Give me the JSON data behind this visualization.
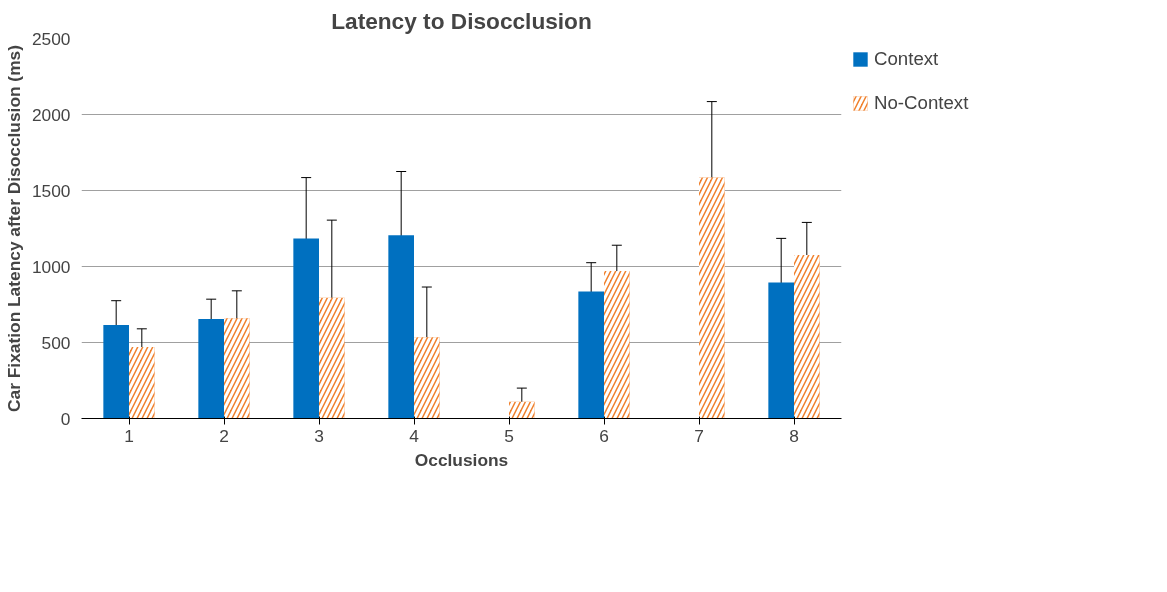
{
  "chart_data": {
    "type": "bar",
    "title": "Latency to Disocclusion",
    "xlabel": "Occlusions",
    "ylabel": "Car Fixation Latency after Disocclusion (ms)",
    "categories": [
      "1",
      "2",
      "3",
      "4",
      "5",
      "6",
      "7",
      "8"
    ],
    "series": [
      {
        "name": "Context",
        "color": "#0070c0",
        "values": [
          615,
          655,
          1185,
          1205,
          null,
          835,
          null,
          895
        ],
        "errors": [
          160,
          130,
          400,
          420,
          null,
          190,
          null,
          290
        ]
      },
      {
        "name": "No-Context",
        "color": "#f07f2a",
        "values": [
          470,
          660,
          795,
          535,
          110,
          970,
          1585,
          1075
        ],
        "errors": [
          120,
          180,
          510,
          330,
          90,
          170,
          500,
          215
        ]
      }
    ],
    "ylim": [
      0,
      2500
    ],
    "yticks": [
      0,
      500,
      1000,
      1500,
      2000,
      2500
    ],
    "grid": "y",
    "legend": "right"
  }
}
